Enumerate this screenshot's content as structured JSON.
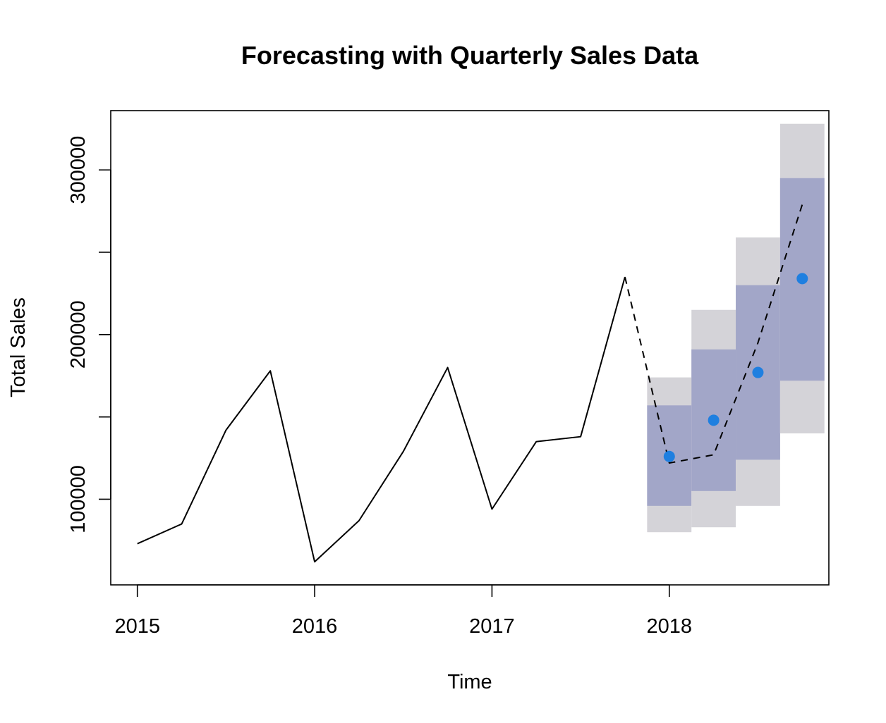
{
  "chart_data": {
    "type": "line",
    "title": "Forecasting with Quarterly Sales Data",
    "xlabel": "Time",
    "ylabel": "Total Sales",
    "xlim": [
      2014.85,
      2018.9
    ],
    "ylim": [
      48000,
      336000
    ],
    "x_ticks": [
      2015,
      2016,
      2017,
      2018
    ],
    "x_tick_labels": [
      "2015",
      "2016",
      "2017",
      "2018"
    ],
    "y_ticks": [
      100000,
      150000,
      200000,
      250000,
      300000
    ],
    "y_tick_labels": [
      "100000",
      "",
      "200000",
      "",
      "300000"
    ],
    "grid": false,
    "series": [
      {
        "style": "solid",
        "x": [
          2015.0,
          2015.25,
          2015.5,
          2015.75,
          2016.0,
          2016.25,
          2016.5,
          2016.75,
          2017.0,
          2017.25,
          2017.5,
          2017.75
        ],
        "y": [
          73000,
          85000,
          142000,
          178000,
          62000,
          87000,
          129000,
          180000,
          94000,
          135000,
          138000,
          235000
        ]
      },
      {
        "style": "dashed",
        "x": [
          2017.75,
          2018.0,
          2018.25,
          2018.5,
          2018.75
        ],
        "y": [
          235000,
          122000,
          127000,
          195000,
          279000
        ]
      }
    ],
    "points": {
      "color": "#1f7fe0",
      "x": [
        2018.0,
        2018.25,
        2018.5,
        2018.75
      ],
      "y": [
        126000,
        148000,
        177000,
        234000
      ]
    },
    "intervals": {
      "x_start": [
        2017.875,
        2018.125,
        2018.375,
        2018.625
      ],
      "x_end": [
        2018.125,
        2018.375,
        2018.625,
        2018.875
      ],
      "inner_low": [
        96000,
        105000,
        124000,
        172000
      ],
      "inner_high": [
        157000,
        191000,
        230000,
        295000
      ],
      "outer_low": [
        80000,
        83000,
        96000,
        140000
      ],
      "outer_high": [
        174000,
        215000,
        259000,
        328000
      ],
      "inner_color": "#a2a6c8",
      "outer_color": "#d4d3d8"
    }
  }
}
